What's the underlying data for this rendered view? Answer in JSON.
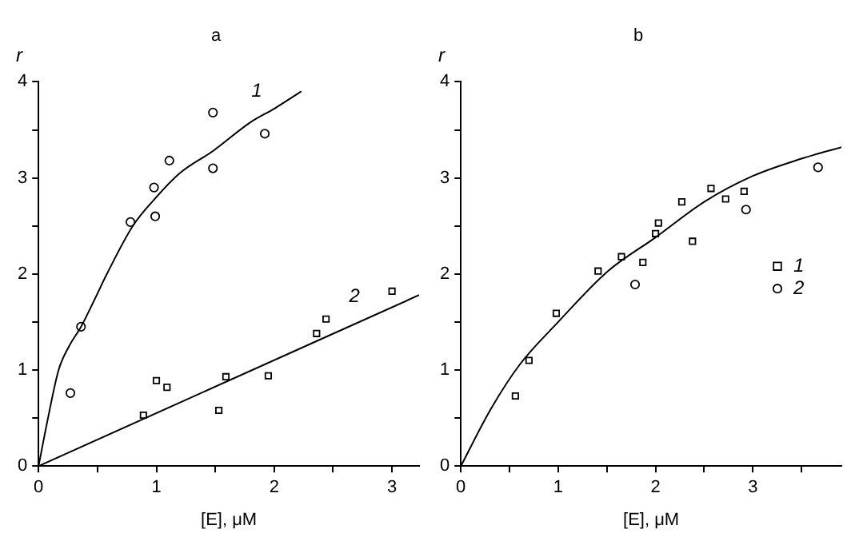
{
  "chart_data": [
    {
      "type": "scatter",
      "title": "a",
      "xlabel": "[E], μM",
      "ylabel": "r",
      "xlim": [
        0,
        3.23
      ],
      "ylim": [
        0,
        4
      ],
      "xticks": [
        0,
        {
          "value": 0.5,
          "label": null
        },
        1,
        {
          "value": 1.5,
          "label": null
        },
        2,
        {
          "value": 2.5,
          "label": null
        },
        3
      ],
      "yticks": [
        0,
        {
          "value": 0.5,
          "label": null
        },
        1,
        {
          "value": 1.5,
          "label": null
        },
        2,
        {
          "value": 2.5,
          "label": null
        },
        3,
        {
          "value": 3.5,
          "label": null
        },
        4
      ],
      "grid": false,
      "legend": false,
      "series": [
        {
          "marker": "circle",
          "color": "#000000",
          "x": [
            0.27,
            0.36,
            0.78,
            0.98,
            0.99,
            1.11,
            1.48,
            1.48,
            1.92
          ],
          "values": [
            0.76,
            1.45,
            2.54,
            2.9,
            2.6,
            3.18,
            3.68,
            3.1,
            3.46
          ]
        },
        {
          "name": "1",
          "type": "line",
          "marker": "none",
          "color": "#000000",
          "x": [
            0,
            0.08,
            0.17,
            0.26,
            0.36,
            0.47,
            0.58,
            0.8,
            1.0,
            1.2,
            1.48,
            1.8,
            2.0,
            2.23
          ],
          "values": [
            0,
            0.5,
            1.0,
            1.25,
            1.45,
            1.72,
            2.0,
            2.5,
            2.8,
            3.05,
            3.28,
            3.58,
            3.72,
            3.9
          ]
        },
        {
          "marker": "square",
          "color": "#000000",
          "x": [
            0.89,
            1.0,
            1.09,
            1.53,
            1.59,
            1.95,
            2.36,
            2.44,
            3.0
          ],
          "values": [
            0.53,
            0.89,
            0.82,
            0.58,
            0.93,
            0.94,
            1.38,
            1.53,
            1.82
          ]
        },
        {
          "name": "2",
          "type": "line",
          "marker": "none",
          "color": "#000000",
          "x": [
            0,
            3.23
          ],
          "values": [
            0,
            1.78
          ]
        }
      ]
    },
    {
      "type": "scatter",
      "title": "b",
      "xlabel": "[E], μM",
      "ylabel": "r",
      "xlim": [
        0,
        3.91
      ],
      "ylim": [
        0,
        4
      ],
      "xticks": [
        0,
        {
          "value": 0.5,
          "label": null
        },
        1,
        {
          "value": 1.5,
          "label": null
        },
        2,
        {
          "value": 2.5,
          "label": null
        },
        3,
        {
          "value": 3.5,
          "label": null
        }
      ],
      "yticks": [
        0,
        {
          "value": 0.5,
          "label": null
        },
        1,
        {
          "value": 1.5,
          "label": null
        },
        2,
        {
          "value": 2.5,
          "label": null
        },
        3,
        {
          "value": 3.5,
          "label": null
        },
        4
      ],
      "grid": false,
      "legend": "right",
      "series": [
        {
          "name": "1",
          "marker": "square",
          "color": "#000000",
          "x": [
            0.56,
            0.7,
            0.98,
            1.41,
            1.65,
            1.87,
            2.0,
            2.03,
            2.27,
            2.38,
            2.57,
            2.72,
            2.91
          ],
          "values": [
            0.73,
            1.1,
            1.59,
            2.03,
            2.18,
            2.12,
            2.42,
            2.53,
            2.75,
            2.34,
            2.89,
            2.78,
            2.86
          ]
        },
        {
          "name": "2",
          "marker": "circle",
          "color": "#000000",
          "x": [
            1.79,
            2.93,
            3.67
          ],
          "values": [
            1.89,
            2.67,
            3.11
          ]
        },
        {
          "type": "line",
          "marker": "none",
          "color": "#000000",
          "x": [
            0,
            0.3,
            0.6,
            1.0,
            1.5,
            2.0,
            2.5,
            3.0,
            3.5,
            3.91
          ],
          "values": [
            0,
            0.58,
            1.05,
            1.5,
            2.02,
            2.38,
            2.75,
            3.02,
            3.2,
            3.32
          ]
        }
      ]
    }
  ]
}
